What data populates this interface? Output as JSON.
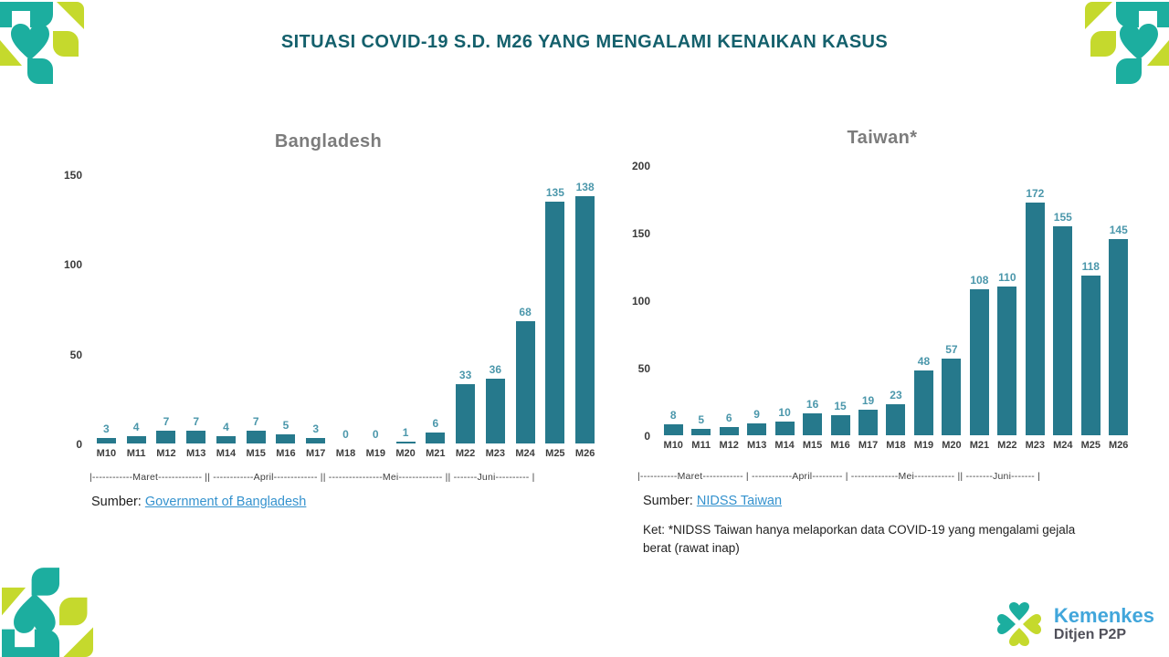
{
  "title": "SITUASI COVID-19 S.D. M26 YANG MENGALAMI KENAIKAN KASUS",
  "charts": [
    {
      "month_axis": "|------------Maret------------- || ------------April------------- || ----------------Mei------------- || -------Juni---------- |",
      "source_prefix": "Sumber:",
      "source_link": "Government of Bangladesh"
    },
    {
      "month_axis": "|-----------Maret------------ | ------------April--------- | --------------Mei------------ || --------Juni------- |",
      "source_prefix": "Sumber:",
      "source_link": "NIDSS Taiwan",
      "note": "Ket: *NIDSS Taiwan hanya melaporkan data COVID-19 yang mengalami gejala berat (rawat inap)"
    }
  ],
  "chart_data": [
    {
      "type": "bar",
      "title": "Bangladesh",
      "categories": [
        "M10",
        "M11",
        "M12",
        "M13",
        "M14",
        "M15",
        "M16",
        "M17",
        "M18",
        "M19",
        "M20",
        "M21",
        "M22",
        "M23",
        "M24",
        "M25",
        "M26"
      ],
      "values": [
        3,
        4,
        7,
        7,
        4,
        7,
        5,
        3,
        0,
        0,
        1,
        6,
        33,
        36,
        68,
        135,
        138
      ],
      "yticks": [
        0,
        50,
        100,
        150
      ],
      "ylim": [
        0,
        150
      ],
      "xlabel": "",
      "ylabel": "",
      "grid": false,
      "legend": "none"
    },
    {
      "type": "bar",
      "title": "Taiwan*",
      "categories": [
        "M10",
        "M11",
        "M12",
        "M13",
        "M14",
        "M15",
        "M16",
        "M17",
        "M18",
        "M19",
        "M20",
        "M21",
        "M22",
        "M23",
        "M24",
        "M25",
        "M26"
      ],
      "values": [
        8,
        5,
        6,
        9,
        10,
        16,
        15,
        19,
        23,
        48,
        57,
        108,
        110,
        172,
        155,
        118,
        145
      ],
      "yticks": [
        0,
        50,
        100,
        150,
        200
      ],
      "ylim": [
        0,
        200
      ],
      "xlabel": "",
      "ylabel": "",
      "grid": false,
      "legend": "none"
    }
  ],
  "logo": {
    "brand": "Kemenkes",
    "unit": "Ditjen P2P"
  },
  "colors": {
    "title_teal": "#14606C",
    "bar": "#26798C",
    "bar_label": "#4B97AB",
    "chart_title_gray": "#7C7C7C",
    "link_blue": "#3492CE",
    "ornament_teal": "#1CAE9F",
    "ornament_lime": "#C5D92D",
    "kemenkes_blue": "#41A6DB",
    "ditjen_gray": "#50505A"
  }
}
